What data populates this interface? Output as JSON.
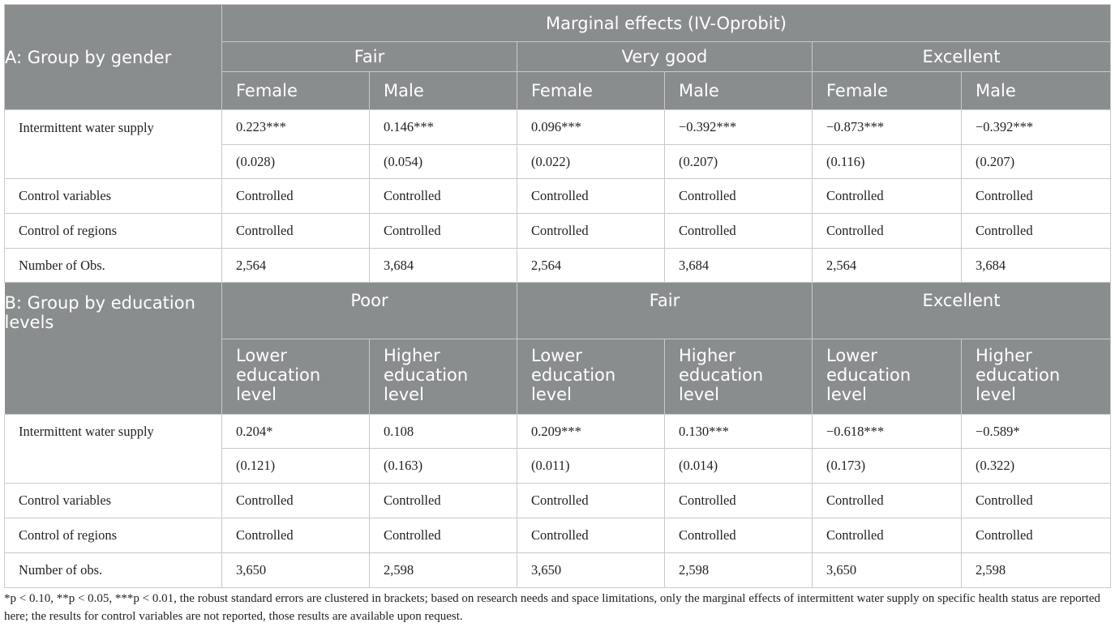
{
  "panel_a": {
    "label": "A: Group by gender",
    "top_header": "Marginal effects (IV-Oprobit)",
    "groups": [
      "Fair",
      "Very good",
      "Excellent"
    ],
    "subgroups": [
      "Female",
      "Male",
      "Female",
      "Male",
      "Female",
      "Male"
    ],
    "rows": [
      {
        "label": "Intermittent water supply",
        "cells": [
          "0.223***",
          "0.146***",
          "0.096***",
          "−0.392***",
          "−0.873***",
          "−0.392***"
        ]
      },
      {
        "label": "",
        "cells": [
          "(0.028)",
          "(0.054)",
          "(0.022)",
          "(0.207)",
          "(0.116)",
          "(0.207)"
        ]
      },
      {
        "label": "Control variables",
        "cells": [
          "Controlled",
          "Controlled",
          "Controlled",
          "Controlled",
          "Controlled",
          "Controlled"
        ]
      },
      {
        "label": "Control of regions",
        "cells": [
          "Controlled",
          "Controlled",
          "Controlled",
          "Controlled",
          "Controlled",
          "Controlled"
        ]
      },
      {
        "label": "Number of Obs.",
        "cells": [
          "2,564",
          "3,684",
          "2,564",
          "3,684",
          "2,564",
          "3,684"
        ]
      }
    ]
  },
  "panel_b": {
    "label": "B: Group by education levels",
    "groups": [
      "Poor",
      "Fair",
      "Excellent"
    ],
    "subgroups": [
      "Lower education level",
      "Higher education level",
      "Lower education level",
      "Higher education level",
      "Lower education level",
      "Higher education level"
    ],
    "rows": [
      {
        "label": "Intermittent water supply",
        "cells": [
          "0.204*",
          "0.108",
          "0.209***",
          "0.130***",
          "−0.618***",
          "−0.589*"
        ]
      },
      {
        "label": "",
        "cells": [
          "(0.121)",
          "(0.163)",
          "(0.011)",
          "(0.014)",
          "(0.173)",
          "(0.322)"
        ]
      },
      {
        "label": "Control variables",
        "cells": [
          "Controlled",
          "Controlled",
          "Controlled",
          "Controlled",
          "Controlled",
          "Controlled"
        ]
      },
      {
        "label": "Control of regions",
        "cells": [
          "Controlled",
          "Controlled",
          "Controlled",
          "Controlled",
          "Controlled",
          "Controlled"
        ]
      },
      {
        "label": "Number of obs.",
        "cells": [
          "3,650",
          "2,598",
          "3,650",
          "2,598",
          "3,650",
          "2,598"
        ]
      }
    ]
  },
  "footnote": "*p < 0.10, **p < 0.05, ***p < 0.01, the robust standard errors are clustered in brackets; based on research needs and space limitations, only the marginal effects of intermittent water supply on specific health status are reported here; the results for control variables are not reported, those results are available upon request."
}
